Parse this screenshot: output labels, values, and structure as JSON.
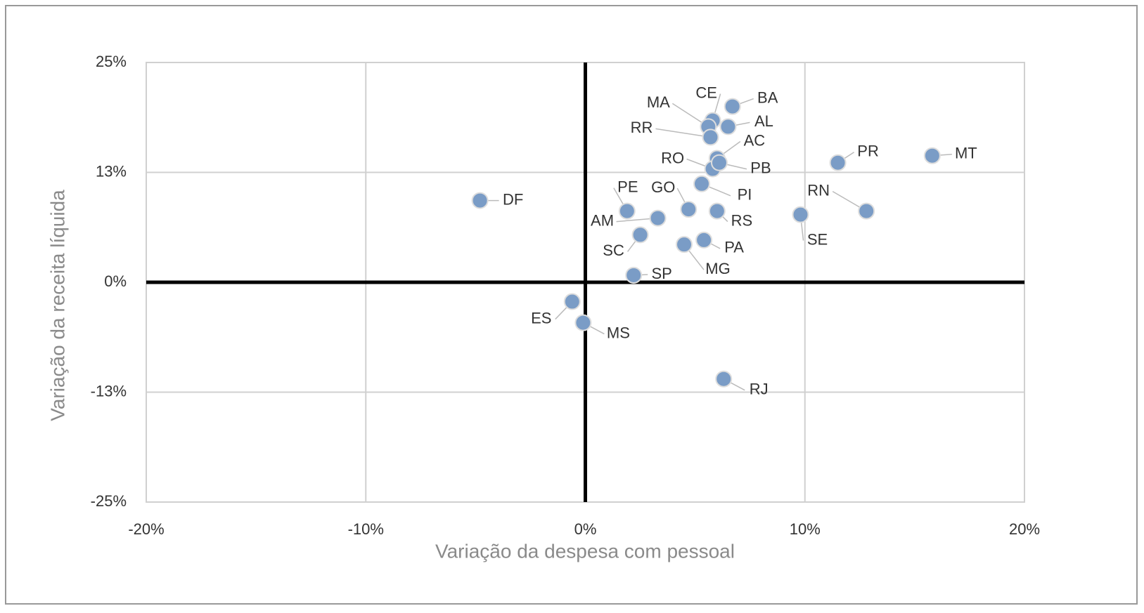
{
  "chart_data": {
    "type": "scatter",
    "xlabel": "Variação da despesa com pessoal",
    "ylabel": "Variação da receita líquida",
    "xlim": [
      -20,
      20
    ],
    "ylim": [
      -25,
      25
    ],
    "xticks": [
      {
        "value": -20,
        "label": "-20%"
      },
      {
        "value": -10,
        "label": "-10%"
      },
      {
        "value": 0,
        "label": "0%"
      },
      {
        "value": 10,
        "label": "10%"
      },
      {
        "value": 20,
        "label": "20%"
      }
    ],
    "yticks": [
      {
        "value": -25,
        "label": "-25%"
      },
      {
        "value": -12.5,
        "label": "-13%"
      },
      {
        "value": 0,
        "label": "0%"
      },
      {
        "value": 12.5,
        "label": "13%"
      },
      {
        "value": 25,
        "label": "25%"
      }
    ],
    "grid": true,
    "color": "#7a9cc6",
    "labels": [
      "DF",
      "BA",
      "CE",
      "MA",
      "AL",
      "RR",
      "AC",
      "RO",
      "PB",
      "PI",
      "PR",
      "MT",
      "RN",
      "SE",
      "PE",
      "GO",
      "RS",
      "AM",
      "SC",
      "PA",
      "MG",
      "SP",
      "ES",
      "MS",
      "RJ"
    ],
    "x": [
      -4.8,
      6.7,
      5.8,
      5.6,
      6.5,
      5.7,
      6.0,
      5.8,
      6.1,
      5.3,
      11.5,
      15.8,
      12.8,
      9.8,
      1.9,
      4.7,
      6.0,
      3.3,
      2.5,
      5.4,
      4.5,
      2.2,
      -0.6,
      -0.1,
      6.3
    ],
    "y": [
      9.3,
      20.0,
      18.4,
      17.7,
      17.7,
      16.5,
      14.1,
      12.9,
      13.6,
      11.2,
      13.6,
      14.4,
      8.1,
      7.7,
      8.1,
      8.3,
      8.1,
      7.3,
      5.4,
      4.8,
      4.3,
      0.8,
      -2.2,
      -4.6,
      -11.0
    ]
  }
}
